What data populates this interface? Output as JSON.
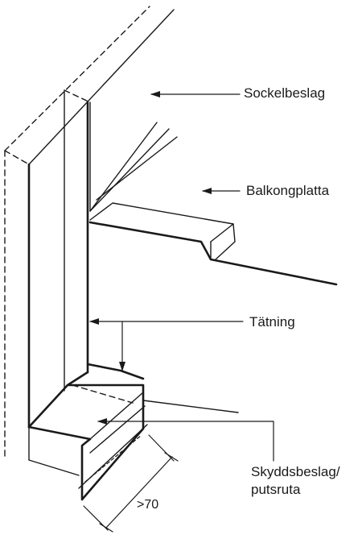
{
  "labels": {
    "sockelbeslag": "Sockelbeslag",
    "balkongplatta": "Balkongplatta",
    "tatning": "Tätning",
    "skyddsbeslag_line1": "Skyddsbeslag/",
    "skyddsbeslag_line2": "putsruta",
    "dimension": ">70"
  },
  "colors": {
    "line": "#1a1a1a",
    "background": "#ffffff"
  }
}
